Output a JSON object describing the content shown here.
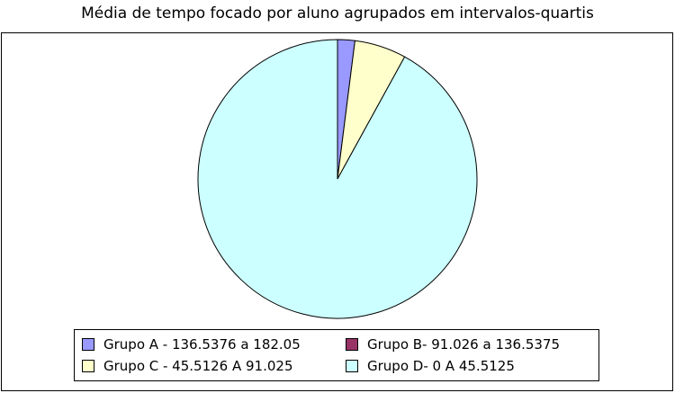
{
  "chart_data": {
    "type": "pie",
    "title": "Média de tempo focado por aluno agrupados em intervalos-quartis",
    "slices": [
      {
        "label": "Grupo A - 136.5376 a 182.05",
        "value": 2,
        "color": "#9999ff"
      },
      {
        "label": "Grupo B- 91.026 a 136.5375",
        "value": 0,
        "color": "#993366"
      },
      {
        "label": "Grupo C - 45.5126 A  91.025",
        "value": 6,
        "color": "#ffffcc"
      },
      {
        "label": "Grupo D- 0 A  45.5125",
        "value": 92,
        "color": "#ccffff"
      }
    ],
    "legend_position": "bottom"
  }
}
